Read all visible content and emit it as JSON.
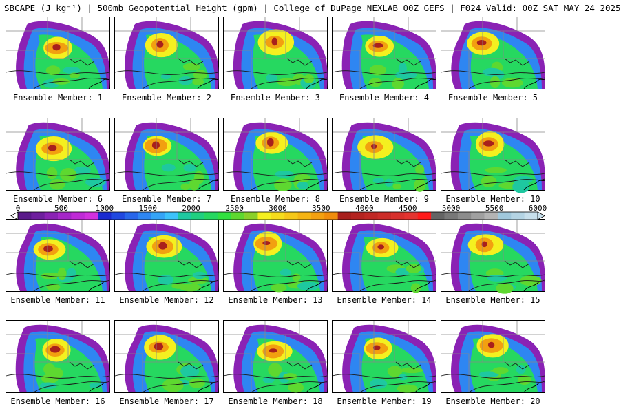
{
  "header": {
    "title": "SBCAPE (J kg⁻¹) | 500mb Geopotential Height (gpm) | College of DuPage NEXLAB 00Z GEFS | F024 Valid: 00Z SAT MAY 24 2025"
  },
  "colorbar": {
    "min": 0,
    "max": 6000,
    "tick_labels": [
      "0",
      "500",
      "1000",
      "1500",
      "2000",
      "2500",
      "3000",
      "3500",
      "4000",
      "4500",
      "5000",
      "5500",
      "6000"
    ],
    "colors": [
      "#5a1a8a",
      "#6e1f9e",
      "#8a22b4",
      "#a526c8",
      "#bf2ad6",
      "#d230de",
      "#1a2ad0",
      "#2048e0",
      "#2866ea",
      "#2e86f2",
      "#35a4f6",
      "#3cc2fa",
      "#1ec8a0",
      "#20d080",
      "#26d860",
      "#32e040",
      "#5ed830",
      "#8ad02a",
      "#f4f020",
      "#f6dc1c",
      "#f6c818",
      "#f4b414",
      "#f2a010",
      "#f08c0c",
      "#a8201c",
      "#b42420",
      "#c02824",
      "#cc2c28",
      "#d8302c",
      "#e43430",
      "#ff1a1a",
      "#646464",
      "#787878",
      "#8c8c8c",
      "#a0a0a0",
      "#b4b4b4",
      "#a0c8dc",
      "#b4d4e4",
      "#c8e0ec"
    ]
  },
  "panels": [
    {
      "label": "Ensemble Member: 1"
    },
    {
      "label": "Ensemble Member: 2"
    },
    {
      "label": "Ensemble Member: 3"
    },
    {
      "label": "Ensemble Member: 4"
    },
    {
      "label": "Ensemble Member: 5"
    },
    {
      "label": "Ensemble Member: 6"
    },
    {
      "label": "Ensemble Member: 7"
    },
    {
      "label": "Ensemble Member: 8"
    },
    {
      "label": "Ensemble Member: 9"
    },
    {
      "label": "Ensemble Member: 10"
    },
    {
      "label": "Ensemble Member: 11"
    },
    {
      "label": "Ensemble Member: 12"
    },
    {
      "label": "Ensemble Member: 13"
    },
    {
      "label": "Ensemble Member: 14"
    },
    {
      "label": "Ensemble Member: 15"
    },
    {
      "label": "Ensemble Member: 16"
    },
    {
      "label": "Ensemble Member: 17"
    },
    {
      "label": "Ensemble Member: 18"
    },
    {
      "label": "Ensemble Member: 19"
    },
    {
      "label": "Ensemble Member: 20"
    }
  ]
}
